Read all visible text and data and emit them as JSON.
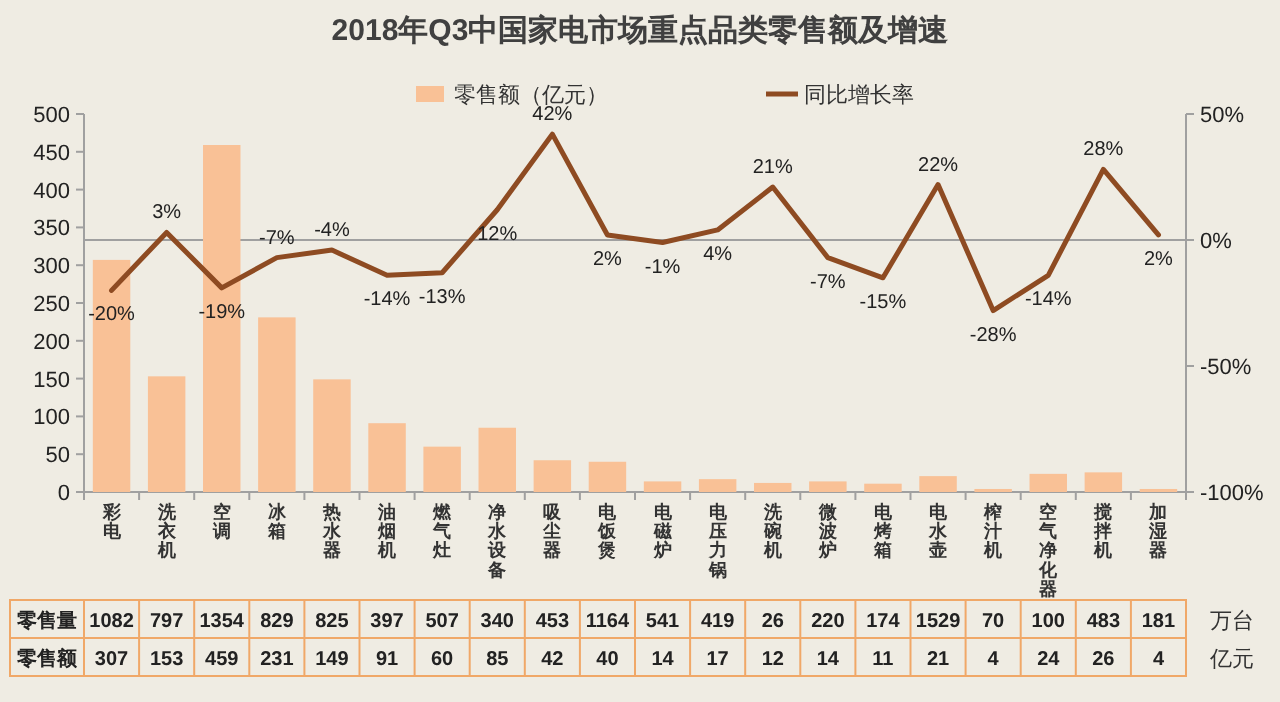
{
  "chart_data": {
    "type": "bar",
    "title": "2018年Q3中国家电市场重点品类零售额及增速",
    "categories": [
      "彩电",
      "洗衣机",
      "空调",
      "冰箱",
      "热水器",
      "油烟机",
      "燃气灶",
      "净水设备",
      "吸尘器",
      "电饭煲",
      "电磁炉",
      "电压力锅",
      "洗碗机",
      "微波炉",
      "电烤箱",
      "电水壶",
      "榨汁机",
      "空气净化器",
      "搅拌机",
      "加湿器"
    ],
    "series": [
      {
        "name": "零售额（亿元）",
        "color": "#f9c196",
        "values": [
          307,
          153,
          459,
          231,
          149,
          91,
          60,
          85,
          42,
          40,
          14,
          17,
          12,
          14,
          11,
          21,
          4,
          24,
          26,
          4
        ]
      },
      {
        "name": "同比增长率",
        "type": "line",
        "axis": "y2",
        "color": "#8e4b22",
        "values": [
          -20,
          3,
          -19,
          -7,
          -4,
          -14,
          -13,
          12,
          42,
          2,
          -1,
          4,
          21,
          -7,
          -15,
          22,
          -28,
          -14,
          28,
          2
        ],
        "value_labels": [
          "-20%",
          "3%",
          "-19%",
          "-7%",
          "-4%",
          "-14%",
          "-13%",
          "12%",
          "42%",
          "2%",
          "-1%",
          "4%",
          "21%",
          "-7%",
          "-15%",
          "22%",
          "-28%",
          "-14%",
          "28%",
          "2%"
        ]
      },
      {
        "name": "零售量",
        "type": "other",
        "values": [
          null,
          null,
          null,
          null,
          null,
          null,
          null,
          null,
          null,
          null,
          null,
          null,
          null,
          null,
          null,
          null,
          null,
          null,
          null,
          null
        ],
        "value_labels": [
          "1082",
          "797",
          "1354",
          "829",
          "825",
          "397",
          "507",
          "340",
          "453",
          "1164",
          "541",
          "419",
          "26",
          "220",
          "174",
          "1529",
          "70",
          "100",
          "483",
          "181"
        ]
      }
    ],
    "data_labels": true,
    "annotations": [
      "零售额",
      "万台",
      "亿元"
    ],
    "ylim": [
      0,
      500
    ],
    "yticks": [
      0,
      50,
      100,
      150,
      200,
      250,
      300,
      350,
      400,
      450,
      500
    ],
    "y2lim": [
      -100,
      50
    ],
    "y2ticks": [
      {
        "value": -100,
        "label": "-100%"
      },
      {
        "value": -50,
        "label": "-50%"
      },
      {
        "value": 0,
        "label": "0%"
      },
      {
        "value": 50,
        "label": "50%"
      }
    ],
    "ref_lines": [
      {
        "axis": "y2",
        "value": 0,
        "color": "#a0a0a0"
      }
    ],
    "legend": "top",
    "grid": false
  }
}
